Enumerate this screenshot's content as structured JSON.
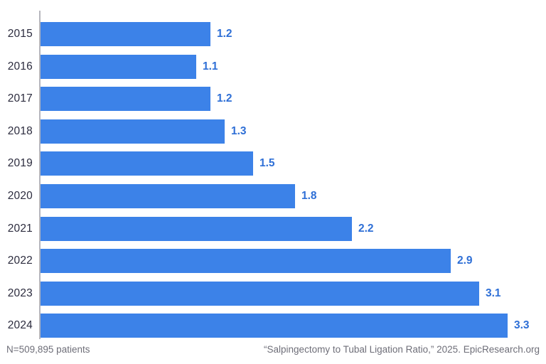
{
  "chart_data": {
    "type": "bar",
    "orientation": "horizontal",
    "title": "",
    "categories": [
      "2015",
      "2016",
      "2017",
      "2018",
      "2019",
      "2020",
      "2021",
      "2022",
      "2023",
      "2024"
    ],
    "values": [
      1.2,
      1.1,
      1.2,
      1.3,
      1.5,
      1.8,
      2.2,
      2.9,
      3.1,
      3.3
    ],
    "value_labels": [
      "1.2",
      "1.1",
      "1.2",
      "1.3",
      "1.5",
      "1.8",
      "2.2",
      "2.9",
      "3.1",
      "3.3"
    ],
    "xlabel": "",
    "ylabel": "",
    "xlim": [
      0,
      3.5
    ],
    "grid": false,
    "legend": "none",
    "data_labels": "outside-end",
    "colors": {
      "bar": "#3c82e8",
      "value_label": "#2e6fd6",
      "category_label": "#2c2c3e",
      "axis_line": "#b6b6bd",
      "footer_text": "#6e6e78",
      "background": "#ffffff"
    }
  },
  "footer": {
    "left": "N=509,895 patients",
    "right": "“Salpingectomy to Tubal Ligation Ratio,” 2025. EpicResearch.org"
  }
}
